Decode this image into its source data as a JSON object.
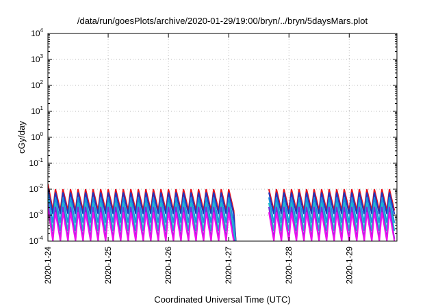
{
  "chart_data": {
    "type": "line",
    "title": "/data/run/goesPlots/archive/2020-01-29/19:00/bryn/../bryn/5daysMars.plot",
    "xlabel": "Coordinated Universal Time (UTC)",
    "ylabel": "cGy/day",
    "yscale": "log",
    "ylim": [
      0.0001,
      10000
    ],
    "xlim": [
      "2020-01-24T00:00",
      "2020-01-29T19:00"
    ],
    "grid": true,
    "legend": "none",
    "y_ticks": [
      {
        "base": "10",
        "exp": "4",
        "value": 10000
      },
      {
        "base": "10",
        "exp": "3",
        "value": 1000
      },
      {
        "base": "10",
        "exp": "2",
        "value": 100
      },
      {
        "base": "10",
        "exp": "1",
        "value": 10
      },
      {
        "base": "10",
        "exp": "0",
        "value": 1
      },
      {
        "base": "10",
        "exp": "-1",
        "value": 0.1
      },
      {
        "base": "10",
        "exp": "-2",
        "value": 0.01
      },
      {
        "base": "10",
        "exp": "-3",
        "value": 0.001
      },
      {
        "base": "10",
        "exp": "-4",
        "value": 0.0001
      }
    ],
    "x_ticks": [
      {
        "label": "2020-1-24",
        "value": "2020-01-24T00:00"
      },
      {
        "label": "2020-1-25",
        "value": "2020-01-25T00:00"
      },
      {
        "label": "2020-1-26",
        "value": "2020-01-26T00:00"
      },
      {
        "label": "2020-1-27",
        "value": "2020-01-27T00:00"
      },
      {
        "label": "2020-1-28",
        "value": "2020-01-28T00:00"
      },
      {
        "label": "2020-1-29",
        "value": "2020-01-29T00:00"
      }
    ],
    "gap": [
      "2020-01-27T02:00",
      "2020-01-27T16:00"
    ],
    "series": [
      {
        "color": "#e8141e",
        "peak": 0.01,
        "trough": 0.0015,
        "first_peak": 0.016
      },
      {
        "color": "#2233bb",
        "peak": 0.0075,
        "trough": 0.0011,
        "first_peak": 0.011
      },
      {
        "color": "#1a8fe0",
        "peak": 0.0048,
        "trough": 0.0005,
        "first_peak": 0.007
      },
      {
        "color": "#22bbcc",
        "peak": 0.003,
        "trough": 0.00025,
        "first_peak": 0.004
      },
      {
        "color": "#7a2bd8",
        "peak": 0.0021,
        "trough": 0.00012,
        "first_peak": 0.003
      },
      {
        "color": "#ee11ee",
        "peak": 0.0013,
        "trough": 0.0001,
        "first_peak": 0.0019
      }
    ]
  }
}
